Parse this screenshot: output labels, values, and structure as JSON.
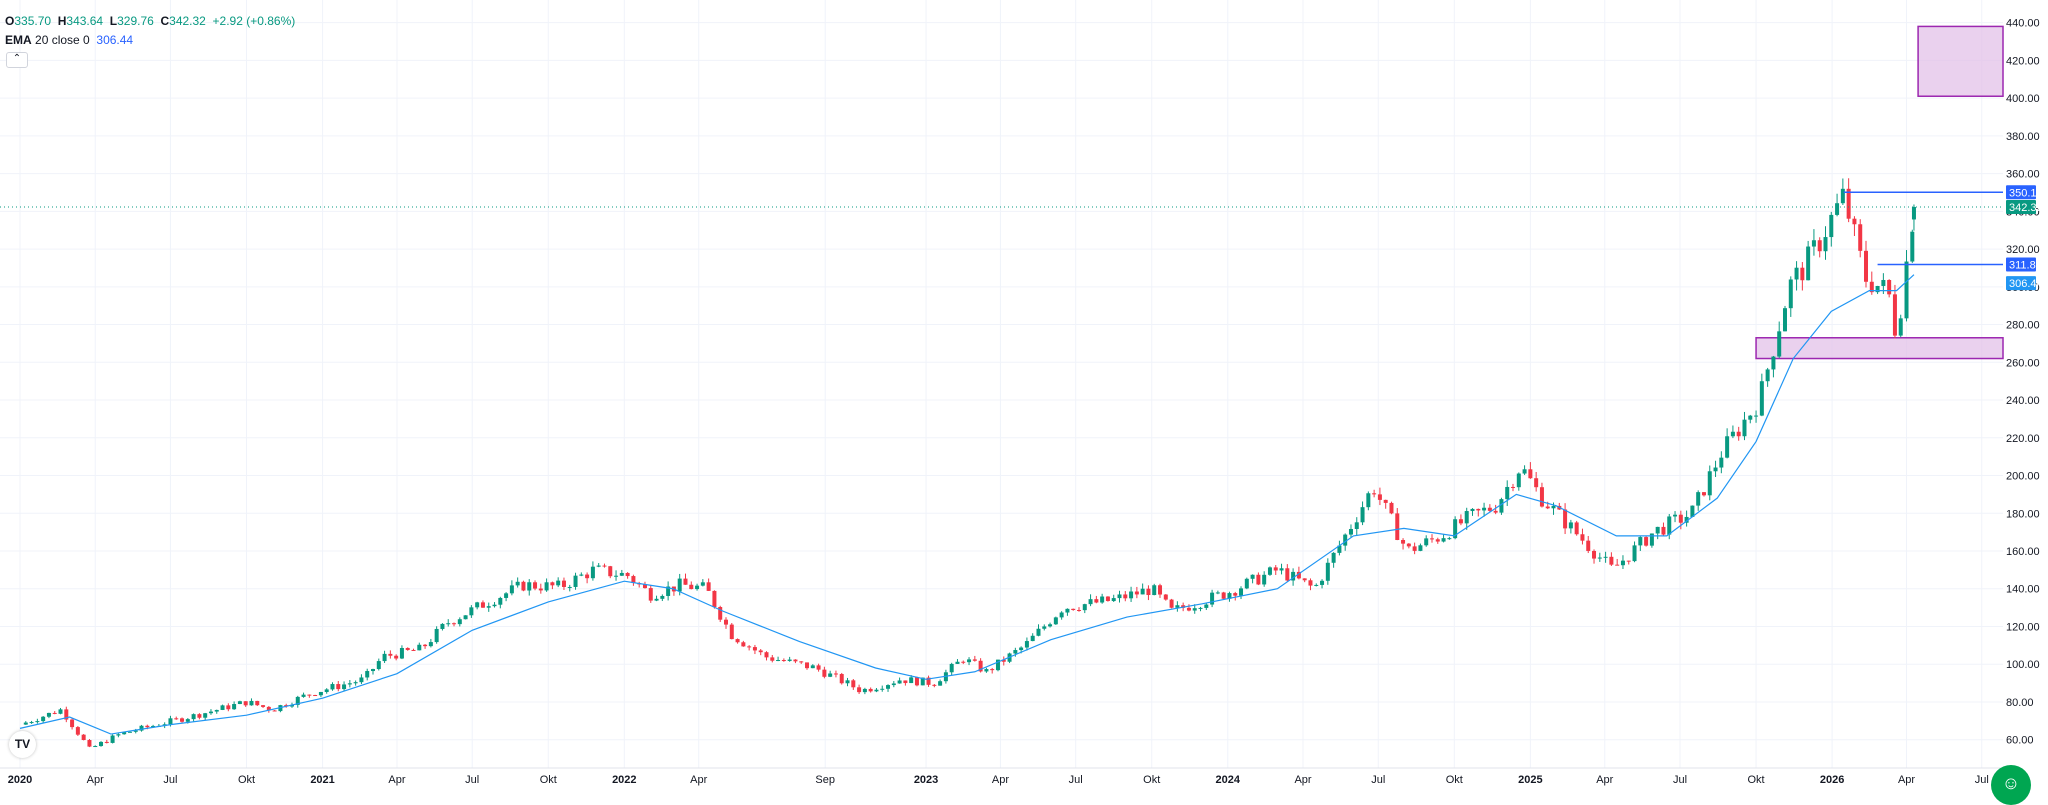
{
  "legend": {
    "o_label": "O",
    "o_value": "335.70",
    "h_label": "H",
    "h_value": "343.64",
    "l_label": "L",
    "l_value": "329.76",
    "c_label": "C",
    "c_value": "342.32",
    "change": "+2.92 (+0.86%)",
    "ema_label": "EMA",
    "ema_params": "20 close 0",
    "ema_value": "306.44"
  },
  "collapse_icon": "chevron-up-icon",
  "logo_text": "TV",
  "accessibility_icon": "accessibility-icon",
  "colors": {
    "up": "#089981",
    "down": "#f23645",
    "ema": "#2196f3",
    "zone_fill": "#e1bee7",
    "zone_border": "#9c27b0",
    "level_line": "#2962ff",
    "price_badge": "#089981",
    "grid": "#f0f3fa",
    "text": "#131722"
  },
  "chart_data": {
    "type": "candlestick",
    "y_axis": {
      "min": 45,
      "max": 452,
      "ticks": [
        60,
        80,
        100,
        120,
        140,
        160,
        180,
        200,
        220,
        240,
        260,
        280,
        300,
        320,
        340,
        360,
        380,
        400,
        420,
        440
      ],
      "tick_labels": [
        "60.00",
        "80.00",
        "100.00",
        "120.00",
        "140.00",
        "160.00",
        "180.00",
        "200.00",
        "220.00",
        "240.00",
        "260.00",
        "280.00",
        "300.00",
        "320.00",
        "340.00",
        "360.00",
        "380.00",
        "400.00",
        "420.00",
        "440.00"
      ]
    },
    "x_axis": {
      "start": "2020-01-01",
      "end": "2026-09-01",
      "ticks": [
        {
          "date": "2020-01-01",
          "label": "2020",
          "bold": true
        },
        {
          "date": "2020-04-01",
          "label": "Apr",
          "bold": false
        },
        {
          "date": "2020-07-01",
          "label": "Jul",
          "bold": false
        },
        {
          "date": "2020-10-01",
          "label": "Okt",
          "bold": false
        },
        {
          "date": "2021-01-01",
          "label": "2021",
          "bold": true
        },
        {
          "date": "2021-04-01",
          "label": "Apr",
          "bold": false
        },
        {
          "date": "2021-07-01",
          "label": "Jul",
          "bold": false
        },
        {
          "date": "2021-10-01",
          "label": "Okt",
          "bold": false
        },
        {
          "date": "2022-01-01",
          "label": "2022",
          "bold": true
        },
        {
          "date": "2022-04-01",
          "label": "Apr",
          "bold": false
        },
        {
          "date": "2022-09-01",
          "label": "Sep",
          "bold": false
        },
        {
          "date": "2023-01-01",
          "label": "2023",
          "bold": true
        },
        {
          "date": "2023-04-01",
          "label": "Apr",
          "bold": false
        },
        {
          "date": "2023-07-01",
          "label": "Jul",
          "bold": false
        },
        {
          "date": "2023-10-01",
          "label": "Okt",
          "bold": false
        },
        {
          "date": "2024-01-01",
          "label": "2024",
          "bold": true
        },
        {
          "date": "2024-04-01",
          "label": "Apr",
          "bold": false
        },
        {
          "date": "2024-07-01",
          "label": "Jul",
          "bold": false
        },
        {
          "date": "2024-10-01",
          "label": "Okt",
          "bold": false
        },
        {
          "date": "2025-01-01",
          "label": "2025",
          "bold": true
        },
        {
          "date": "2025-04-01",
          "label": "Apr",
          "bold": false
        },
        {
          "date": "2025-07-01",
          "label": "Jul",
          "bold": false
        },
        {
          "date": "2025-10-01",
          "label": "Okt",
          "bold": false
        },
        {
          "date": "2026-01-01",
          "label": "2026",
          "bold": true
        },
        {
          "date": "2026-04-01",
          "label": "Apr",
          "bold": false
        },
        {
          "date": "2026-07-01",
          "label": "Jul",
          "bold": false
        }
      ]
    },
    "close_path": [
      [
        "2020-01-01",
        68
      ],
      [
        "2020-02-20",
        76
      ],
      [
        "2020-03-25",
        55
      ],
      [
        "2020-05-01",
        63
      ],
      [
        "2020-06-15",
        68
      ],
      [
        "2020-08-01",
        73
      ],
      [
        "2020-10-01",
        80
      ],
      [
        "2020-11-01",
        76
      ],
      [
        "2020-12-20",
        85
      ],
      [
        "2021-02-20",
        92
      ],
      [
        "2021-03-15",
        104
      ],
      [
        "2021-04-30",
        108
      ],
      [
        "2021-06-01",
        122
      ],
      [
        "2021-07-15",
        132
      ],
      [
        "2021-09-01",
        142
      ],
      [
        "2021-10-15",
        141
      ],
      [
        "2021-11-25",
        150
      ],
      [
        "2022-01-05",
        147
      ],
      [
        "2022-02-01",
        137
      ],
      [
        "2022-03-10",
        142
      ],
      [
        "2022-04-10",
        140
      ],
      [
        "2022-05-10",
        116
      ],
      [
        "2022-06-20",
        104
      ],
      [
        "2022-08-20",
        98
      ],
      [
        "2022-10-15",
        86
      ],
      [
        "2022-12-01",
        92
      ],
      [
        "2023-01-10",
        90
      ],
      [
        "2023-02-15",
        103
      ],
      [
        "2023-03-15",
        96
      ],
      [
        "2023-05-01",
        110
      ],
      [
        "2023-06-15",
        130
      ],
      [
        "2023-08-15",
        134
      ],
      [
        "2023-10-01",
        140
      ],
      [
        "2023-10-25",
        128
      ],
      [
        "2024-01-01",
        138
      ],
      [
        "2024-03-01",
        150
      ],
      [
        "2024-04-15",
        140
      ],
      [
        "2024-06-25",
        194
      ],
      [
        "2024-08-05",
        160
      ],
      [
        "2024-09-15",
        168
      ],
      [
        "2024-10-20",
        178
      ],
      [
        "2024-11-20",
        184
      ],
      [
        "2024-12-20",
        205
      ],
      [
        "2025-01-15",
        188
      ],
      [
        "2025-04-10",
        150
      ],
      [
        "2025-05-30",
        170
      ],
      [
        "2025-07-15",
        180
      ],
      [
        "2025-08-20",
        212
      ],
      [
        "2025-10-05",
        240
      ],
      [
        "2025-11-10",
        300
      ],
      [
        "2025-12-05",
        315
      ],
      [
        "2026-01-15",
        348
      ],
      [
        "2026-02-10",
        305
      ],
      [
        "2026-03-10",
        297
      ],
      [
        "2026-03-20",
        274
      ],
      [
        "2026-04-10",
        342.32
      ]
    ],
    "ema_path": [
      [
        "2020-01-01",
        66
      ],
      [
        "2020-03-01",
        72
      ],
      [
        "2020-04-20",
        63
      ],
      [
        "2020-07-01",
        68
      ],
      [
        "2020-10-01",
        73
      ],
      [
        "2021-01-01",
        82
      ],
      [
        "2021-04-01",
        95
      ],
      [
        "2021-07-01",
        118
      ],
      [
        "2021-10-01",
        133
      ],
      [
        "2022-01-01",
        144
      ],
      [
        "2022-03-01",
        140
      ],
      [
        "2022-05-01",
        128
      ],
      [
        "2022-08-01",
        112
      ],
      [
        "2022-11-01",
        98
      ],
      [
        "2023-01-01",
        92
      ],
      [
        "2023-03-01",
        96
      ],
      [
        "2023-06-01",
        113
      ],
      [
        "2023-09-01",
        125
      ],
      [
        "2023-12-01",
        132
      ],
      [
        "2024-03-01",
        140
      ],
      [
        "2024-06-01",
        168
      ],
      [
        "2024-08-01",
        172
      ],
      [
        "2024-10-01",
        168
      ],
      [
        "2024-12-15",
        190
      ],
      [
        "2025-02-01",
        184
      ],
      [
        "2025-04-15",
        168
      ],
      [
        "2025-06-15",
        168
      ],
      [
        "2025-08-15",
        188
      ],
      [
        "2025-10-01",
        218
      ],
      [
        "2025-11-15",
        262
      ],
      [
        "2025-12-31",
        287
      ],
      [
        "2026-02-15",
        298
      ],
      [
        "2026-03-20",
        298
      ],
      [
        "2026-04-10",
        306.44
      ]
    ],
    "last_candle": {
      "date": "2026-04-10",
      "open": 335.7,
      "high": 343.64,
      "low": 329.76,
      "close": 342.32
    },
    "current_price": 342.32,
    "current_price_label": "342.32",
    "horizontal_levels": [
      {
        "value": 350.11,
        "label": "350.11",
        "start": "2026-01-15"
      },
      {
        "value": 311.8,
        "label": "311.80",
        "start": "2026-02-25"
      }
    ],
    "ema_label": "306.44",
    "zones": [
      {
        "start": "2025-10-01",
        "end": "2026-09-01",
        "low": 262,
        "high": 273
      },
      {
        "start": "2026-04-15",
        "end": "2026-09-01",
        "low": 401,
        "high": 438
      }
    ]
  }
}
